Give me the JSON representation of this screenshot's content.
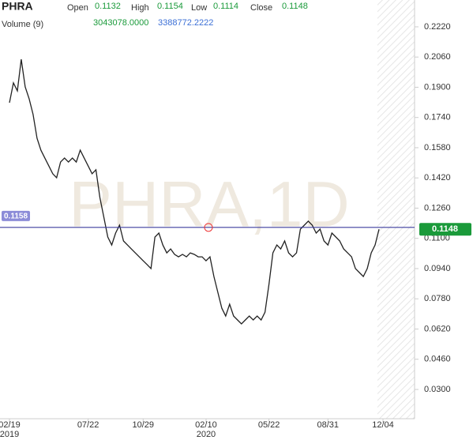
{
  "chart_data": {
    "type": "line",
    "title": "PHRA",
    "watermark": "PHRA,1D",
    "ohlc": [
      {
        "label": "Open",
        "value": 0.1132
      },
      {
        "label": "High",
        "value": 0.1154
      },
      {
        "label": "Low",
        "value": 0.1114
      },
      {
        "label": "Close",
        "value": 0.1148
      }
    ],
    "volume_label": "Volume (9)",
    "volume_readout": [
      {
        "value": 3043078,
        "label": "3043078.0000",
        "color": "#1a9a3a"
      },
      {
        "value": 3388772.2222,
        "label": "3388772.2222",
        "color": "#3b6fd6"
      }
    ],
    "categories": [
      "02/19",
      null,
      null,
      null,
      null,
      null,
      null,
      null,
      null,
      null,
      null,
      null,
      null,
      null,
      null,
      null,
      null,
      null,
      null,
      null,
      "07/22",
      null,
      null,
      null,
      null,
      null,
      null,
      null,
      null,
      null,
      null,
      null,
      null,
      null,
      "10/29",
      null,
      null,
      null,
      null,
      null,
      null,
      null,
      null,
      null,
      null,
      null,
      null,
      null,
      null,
      null,
      "02/10",
      null,
      null,
      null,
      null,
      null,
      null,
      null,
      null,
      null,
      null,
      null,
      null,
      null,
      null,
      null,
      "05/22",
      null,
      null,
      null,
      null,
      null,
      null,
      null,
      null,
      null,
      null,
      null,
      null,
      null,
      null,
      "08/31",
      null,
      null,
      null,
      null,
      null,
      null,
      null,
      null,
      null,
      null,
      null,
      null,
      null,
      "12/04"
    ],
    "year_labels": [
      {
        "index": 0,
        "label": "2019"
      },
      {
        "index": 50,
        "label": "2020"
      }
    ],
    "series": [
      {
        "name": "PHRA",
        "color": "#222222",
        "values": [
          0.1818,
          0.1923,
          0.1881,
          0.2048,
          0.1902,
          0.1839,
          0.1756,
          0.163,
          0.1567,
          0.1525,
          0.1484,
          0.1442,
          0.1421,
          0.1504,
          0.1525,
          0.1504,
          0.1525,
          0.1504,
          0.1567,
          0.1525,
          0.1484,
          0.1442,
          0.1463,
          0.1316,
          0.1212,
          0.1107,
          0.1065,
          0.1128,
          0.117,
          0.1086,
          0.1065,
          0.1044,
          0.1023,
          0.1002,
          0.0981,
          0.0961,
          0.094,
          0.1107,
          0.1128,
          0.1065,
          0.1023,
          0.1044,
          0.1015,
          0.1002,
          0.1015,
          0.1002,
          0.1023,
          0.1015,
          0.1002,
          0.1002,
          0.0981,
          0.1002,
          0.0898,
          0.0814,
          0.073,
          0.0689,
          0.0751,
          0.0689,
          0.0668,
          0.0647,
          0.0668,
          0.0689,
          0.0668,
          0.0689,
          0.0668,
          0.0709,
          0.0856,
          0.1023,
          0.1065,
          0.1044,
          0.1086,
          0.1023,
          0.1002,
          0.1023,
          0.1149,
          0.117,
          0.1191,
          0.117,
          0.1128,
          0.1149,
          0.1086,
          0.1065,
          0.1128,
          0.1107,
          0.1086,
          0.1044,
          0.1023,
          0.1002,
          0.094,
          0.0919,
          0.0898,
          0.094,
          0.1023,
          0.1065,
          0.1148,
          null
        ]
      }
    ],
    "crosshair": 0.1158,
    "crosshair_color": "#3d3d9e",
    "last_price": 0.1148,
    "last_price_color": "#1a9a3a",
    "ylim": [
      0.0145,
      0.2362
    ],
    "yticks": [
      {
        "value": 0.222,
        "label": "0.2220"
      },
      {
        "value": 0.206,
        "label": "0.2060"
      },
      {
        "value": 0.19,
        "label": "0.1900"
      },
      {
        "value": 0.174,
        "label": "0.1740"
      },
      {
        "value": 0.158,
        "label": "0.1580"
      },
      {
        "value": 0.142,
        "label": "0.1420"
      },
      {
        "value": 0.126,
        "label": "0.1260"
      },
      {
        "value": 0.11,
        "label": "0.1100"
      },
      {
        "value": 0.094,
        "label": "0.0940"
      },
      {
        "value": 0.078,
        "label": "0.0780"
      },
      {
        "value": 0.062,
        "label": "0.0620"
      },
      {
        "value": 0.046,
        "label": "0.0460"
      },
      {
        "value": 0.03,
        "label": "0.0300"
      }
    ],
    "grid": false
  }
}
